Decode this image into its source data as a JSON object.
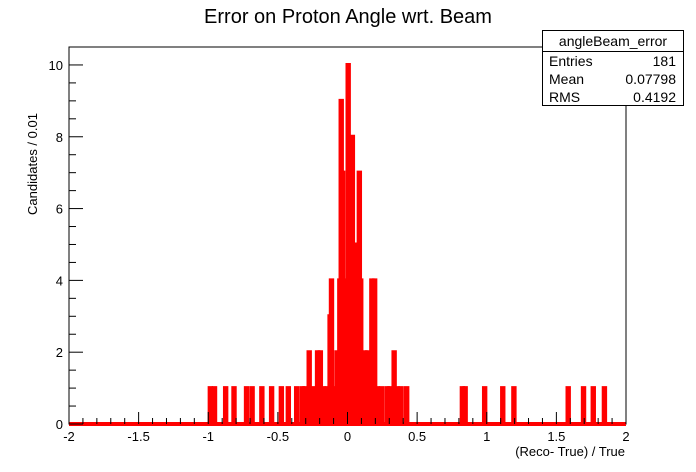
{
  "chart_data": {
    "type": "histogram",
    "title": "Error on Proton Angle wrt. Beam",
    "xlabel": "(Reco- True) / True",
    "ylabel": "Candidates / 0.01",
    "xlim": [
      -2,
      2
    ],
    "ylim": [
      0,
      10.5
    ],
    "x_ticks": [
      "-2",
      "-1.5",
      "-1",
      "-0.5",
      "0",
      "0.5",
      "1",
      "1.5",
      "2"
    ],
    "y_ticks": [
      "0",
      "2",
      "4",
      "6",
      "8",
      "10"
    ],
    "bin_width": 0.01,
    "series": [
      {
        "name": "angleBeam_error",
        "color": "#ff0000",
        "fill_pattern": "brick",
        "bins": [
          {
            "x": -0.985,
            "y": 1
          },
          {
            "x": -0.955,
            "y": 1
          },
          {
            "x": -0.875,
            "y": 1
          },
          {
            "x": -0.815,
            "y": 1
          },
          {
            "x": -0.725,
            "y": 1
          },
          {
            "x": -0.685,
            "y": 1
          },
          {
            "x": -0.615,
            "y": 1
          },
          {
            "x": -0.545,
            "y": 1
          },
          {
            "x": -0.475,
            "y": 1
          },
          {
            "x": -0.425,
            "y": 1
          },
          {
            "x": -0.365,
            "y": 1
          },
          {
            "x": -0.325,
            "y": 1
          },
          {
            "x": -0.305,
            "y": 1
          },
          {
            "x": -0.275,
            "y": 2
          },
          {
            "x": -0.245,
            "y": 1
          },
          {
            "x": -0.215,
            "y": 2
          },
          {
            "x": -0.195,
            "y": 2
          },
          {
            "x": -0.175,
            "y": 1
          },
          {
            "x": -0.145,
            "y": 1
          },
          {
            "x": -0.125,
            "y": 3
          },
          {
            "x": -0.115,
            "y": 4
          },
          {
            "x": -0.095,
            "y": 1
          },
          {
            "x": -0.075,
            "y": 2
          },
          {
            "x": -0.055,
            "y": 4
          },
          {
            "x": -0.045,
            "y": 9
          },
          {
            "x": -0.035,
            "y": 7
          },
          {
            "x": -0.025,
            "y": 4
          },
          {
            "x": -0.015,
            "y": 2
          },
          {
            "x": -0.005,
            "y": 2
          },
          {
            "x": 0.005,
            "y": 10
          },
          {
            "x": 0.015,
            "y": 6
          },
          {
            "x": 0.025,
            "y": 3
          },
          {
            "x": 0.035,
            "y": 8
          },
          {
            "x": 0.045,
            "y": 2
          },
          {
            "x": 0.055,
            "y": 5
          },
          {
            "x": 0.065,
            "y": 3
          },
          {
            "x": 0.075,
            "y": 2
          },
          {
            "x": 0.085,
            "y": 7
          },
          {
            "x": 0.095,
            "y": 4
          },
          {
            "x": 0.115,
            "y": 1
          },
          {
            "x": 0.125,
            "y": 2
          },
          {
            "x": 0.145,
            "y": 2
          },
          {
            "x": 0.175,
            "y": 4
          },
          {
            "x": 0.195,
            "y": 4
          },
          {
            "x": 0.215,
            "y": 1
          },
          {
            "x": 0.245,
            "y": 1
          },
          {
            "x": 0.285,
            "y": 1
          },
          {
            "x": 0.305,
            "y": 1
          },
          {
            "x": 0.335,
            "y": 2
          },
          {
            "x": 0.355,
            "y": 1
          },
          {
            "x": 0.385,
            "y": 1
          },
          {
            "x": 0.425,
            "y": 1
          },
          {
            "x": 0.825,
            "y": 1
          },
          {
            "x": 0.845,
            "y": 1
          },
          {
            "x": 0.985,
            "y": 1
          },
          {
            "x": 1.115,
            "y": 1
          },
          {
            "x": 1.195,
            "y": 1
          },
          {
            "x": 1.585,
            "y": 1
          },
          {
            "x": 1.695,
            "y": 1
          },
          {
            "x": 1.765,
            "y": 1
          },
          {
            "x": 1.845,
            "y": 1
          }
        ]
      }
    ],
    "legend": "none",
    "grid": false
  },
  "stats": {
    "name": "angleBeam_error",
    "entries_label": "Entries",
    "entries": "181",
    "mean_label": "Mean",
    "mean": "0.07798",
    "rms_label": "RMS",
    "rms": "0.4192",
    "placement": "top-right"
  }
}
